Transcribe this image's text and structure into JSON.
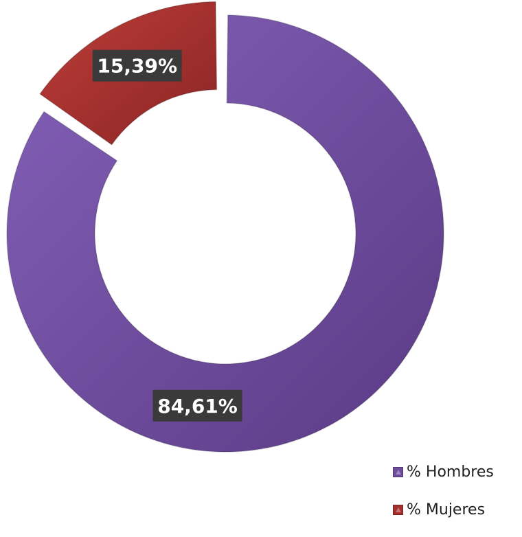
{
  "chart_data": {
    "type": "pie",
    "categories": [
      "% Hombres",
      "% Mujeres"
    ],
    "values": [
      84.61,
      15.39
    ],
    "data_labels": [
      "84,61%",
      "15,39%"
    ],
    "colors": [
      "#6e4b9c",
      "#a3302d"
    ],
    "legend_placement": "bottom-right",
    "donut": true,
    "exploded": [
      "% Mujeres"
    ]
  },
  "legend": {
    "items": [
      {
        "label": "% Hombres",
        "color": "#6e4b9c"
      },
      {
        "label": "% Mujeres",
        "color": "#a3302d"
      }
    ]
  }
}
